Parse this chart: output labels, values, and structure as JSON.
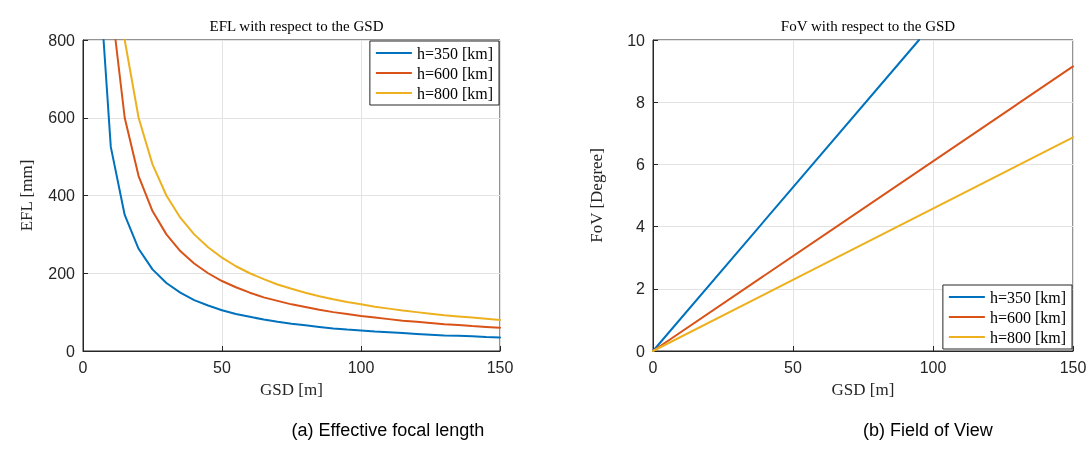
{
  "chart_data": [
    {
      "type": "line",
      "title": "EFL with respect to the GSD",
      "xlabel": "GSD [m]",
      "ylabel": "EFL [mm]",
      "annotations": [
        "(a) Effective focal length"
      ],
      "xlim": [
        0,
        150
      ],
      "xticks": [
        0,
        50,
        100,
        150
      ],
      "ylim": [
        0,
        800
      ],
      "yticks": [
        0,
        200,
        400,
        600,
        800
      ],
      "grid": true,
      "legend": "top right",
      "marker": "none",
      "line_style": "solid",
      "series": [
        {
          "name": "h=350 [km]",
          "color": "#0072bd",
          "x": [
            7.4,
            10,
            15,
            20,
            25,
            30,
            35,
            40,
            45,
            50,
            55,
            60,
            65,
            70,
            75,
            80,
            85,
            90,
            95,
            100,
            105,
            110,
            115,
            120,
            125,
            130,
            135,
            140,
            145,
            150
          ],
          "values": [
            800,
            525,
            350,
            263,
            210,
            175,
            150,
            131,
            117,
            105,
            95,
            88,
            81,
            75,
            70,
            66,
            62,
            58,
            55,
            53,
            50,
            48,
            46,
            44,
            42,
            40,
            39,
            38,
            36,
            35
          ]
        },
        {
          "name": "h=600 [km]",
          "color": "#d95319",
          "x": [
            11.7,
            15,
            20,
            25,
            30,
            35,
            40,
            45,
            50,
            55,
            60,
            65,
            70,
            75,
            80,
            85,
            90,
            95,
            100,
            105,
            110,
            115,
            120,
            125,
            130,
            135,
            140,
            145,
            150
          ],
          "values": [
            800,
            600,
            450,
            360,
            300,
            257,
            225,
            200,
            180,
            164,
            150,
            138,
            129,
            120,
            113,
            106,
            100,
            95,
            90,
            86,
            82,
            78,
            75,
            72,
            69,
            67,
            64,
            62,
            60
          ]
        },
        {
          "name": "h=800 [km]",
          "color": "#edb120",
          "x": [
            15,
            20,
            25,
            30,
            35,
            40,
            45,
            50,
            55,
            60,
            65,
            70,
            75,
            80,
            85,
            90,
            95,
            100,
            105,
            110,
            115,
            120,
            125,
            130,
            135,
            140,
            145,
            150
          ],
          "values": [
            800,
            600,
            480,
            400,
            343,
            300,
            267,
            240,
            218,
            200,
            185,
            171,
            160,
            150,
            141,
            133,
            126,
            120,
            114,
            109,
            104,
            100,
            96,
            92,
            89,
            86,
            83,
            80
          ]
        }
      ]
    },
    {
      "type": "line",
      "title": "FoV with respect to the GSD",
      "xlabel": "GSD [m]",
      "ylabel": "FoV [Degree]",
      "annotations": [
        "(b) Field of View"
      ],
      "xlim": [
        0,
        150
      ],
      "xticks": [
        0,
        50,
        100,
        150
      ],
      "ylim": [
        0,
        10
      ],
      "yticks": [
        0,
        2,
        4,
        6,
        8,
        10
      ],
      "grid": true,
      "legend": "bottom right",
      "marker": "none",
      "line_style": "solid",
      "series": [
        {
          "name": "h=350 [km]",
          "color": "#0072bd",
          "x": [
            0,
            95
          ],
          "values": [
            0,
            10
          ]
        },
        {
          "name": "h=600 [km]",
          "color": "#d95319",
          "x": [
            0,
            150
          ],
          "values": [
            0,
            9.15
          ]
        },
        {
          "name": "h=800 [km]",
          "color": "#edb120",
          "x": [
            0,
            150
          ],
          "values": [
            0,
            6.87
          ]
        }
      ]
    }
  ]
}
